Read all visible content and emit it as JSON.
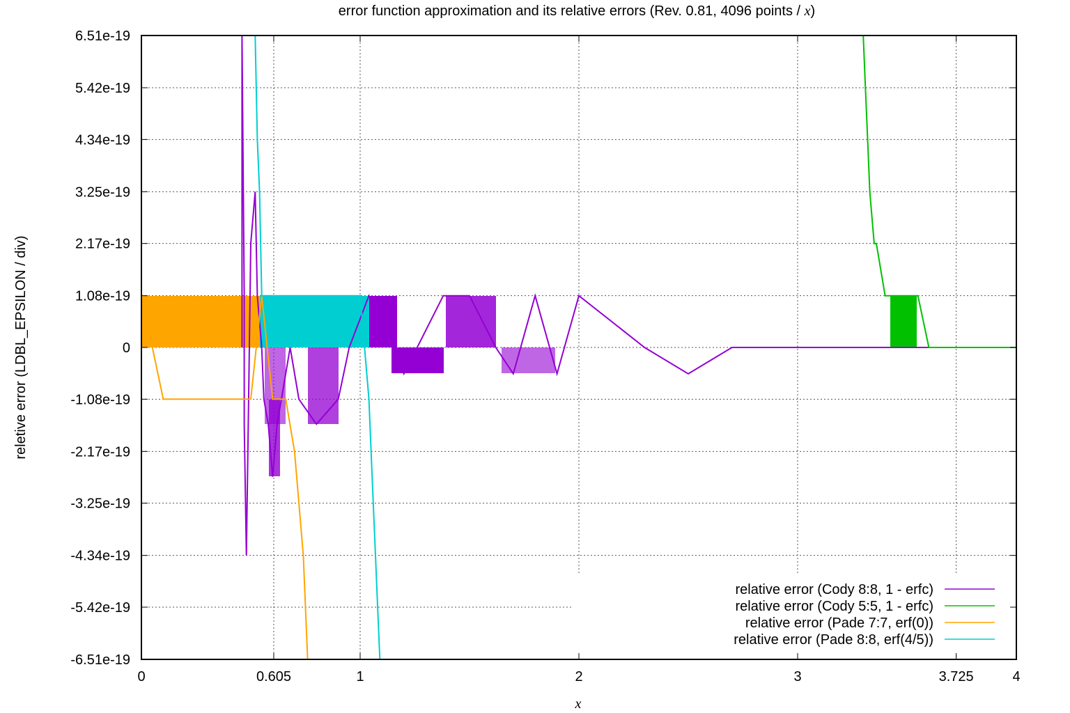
{
  "chart_data": {
    "type": "line",
    "title_main": "error function approximation and its relative errors (Rev. 0.81, 4096 points / ",
    "title_var": "x",
    "title_end": ")",
    "xlabel": "x",
    "ylabel": "reletive error (LDBL_EPSILON / div)",
    "xlim": [
      0,
      4
    ],
    "ylim": [
      -6.51e-19,
      6.51e-19
    ],
    "x_ticks": [
      {
        "value": 0,
        "label": "0"
      },
      {
        "value": 0.605,
        "label": "0.605"
      },
      {
        "value": 1,
        "label": "1"
      },
      {
        "value": 2,
        "label": "2"
      },
      {
        "value": 3,
        "label": "3"
      },
      {
        "value": 3.725,
        "label": "3.725"
      },
      {
        "value": 4,
        "label": "4"
      }
    ],
    "y_ticks": [
      {
        "value": 6.51e-19,
        "label": "6.51e-19"
      },
      {
        "value": 5.42e-19,
        "label": "5.42e-19"
      },
      {
        "value": 4.34e-19,
        "label": "4.34e-19"
      },
      {
        "value": 3.25e-19,
        "label": "3.25e-19"
      },
      {
        "value": 2.17e-19,
        "label": "2.17e-19"
      },
      {
        "value": 1.08e-19,
        "label": "1.08e-19"
      },
      {
        "value": 0,
        "label": "0"
      },
      {
        "value": -1.08e-19,
        "label": "-1.08e-19"
      },
      {
        "value": -2.17e-19,
        "label": "-2.17e-19"
      },
      {
        "value": -3.25e-19,
        "label": "-3.25e-19"
      },
      {
        "value": -4.34e-19,
        "label": "-4.34e-19"
      },
      {
        "value": -5.42e-19,
        "label": "-5.42e-19"
      },
      {
        "value": -6.51e-19,
        "label": "-6.51e-19"
      }
    ],
    "grid": true,
    "legend_position": "bottom-right",
    "series": [
      {
        "name": "relative error (Cody 8:8, 1 - erfc)",
        "color": "#9400d3",
        "points": [
          [
            0.46,
            0
          ],
          [
            0.46,
            6.51e-19
          ],
          [
            0.47,
            1.08e-19
          ],
          [
            0.47,
            -1.6e-19
          ],
          [
            0.48,
            -4.34e-19
          ],
          [
            0.49,
            -1.08e-19
          ],
          [
            0.5,
            2.17e-19
          ],
          [
            0.52,
            3.25e-19
          ],
          [
            0.53,
            1.08e-19
          ],
          [
            0.55,
            0
          ],
          [
            0.56,
            -1.08e-19
          ],
          [
            0.58,
            -1.6e-19
          ],
          [
            0.6,
            -2.7e-19
          ],
          [
            0.62,
            -1.6e-19
          ],
          [
            0.64,
            -1.08e-19
          ],
          [
            0.68,
            0
          ],
          [
            0.72,
            -1.08e-19
          ],
          [
            0.8,
            -1.6e-19
          ],
          [
            0.9,
            -1.08e-19
          ],
          [
            0.95,
            0
          ],
          [
            1.04,
            1.08e-19
          ],
          [
            1.15,
            0
          ],
          [
            1.2,
            -5.5e-20
          ],
          [
            1.38,
            1.08e-19
          ],
          [
            1.5,
            1.08e-19
          ],
          [
            1.62,
            0
          ],
          [
            1.7,
            -5.5e-20
          ],
          [
            1.8,
            1.08e-19
          ],
          [
            1.9,
            -5.5e-20
          ],
          [
            2.0,
            1.08e-19
          ],
          [
            2.3,
            0
          ],
          [
            2.5,
            -5.5e-20
          ],
          [
            2.7,
            0
          ],
          [
            3.0,
            0
          ],
          [
            3.5,
            0
          ],
          [
            4.0,
            0
          ]
        ]
      },
      {
        "name": "relative error (Cody 5:5, 1 - erfc)",
        "color": "#00c000",
        "points": [
          [
            3.3,
            6.51e-19
          ],
          [
            3.31,
            5.42e-19
          ],
          [
            3.32,
            4.34e-19
          ],
          [
            3.33,
            3.25e-19
          ],
          [
            3.35,
            2.17e-19
          ],
          [
            3.36,
            2.17e-19
          ],
          [
            3.4,
            1.08e-19
          ],
          [
            3.5,
            1.08e-19
          ],
          [
            3.55,
            1.08e-19
          ],
          [
            3.6,
            0
          ],
          [
            3.7,
            0
          ],
          [
            4.0,
            0
          ]
        ]
      },
      {
        "name": "relative error (Pade 7:7, erf(0))",
        "color": "#ffa500",
        "points": [
          [
            0,
            1.08e-19
          ],
          [
            0.1,
            -1.08e-19
          ],
          [
            0.3,
            -1.08e-19
          ],
          [
            0.5,
            -1.08e-19
          ],
          [
            0.55,
            1.08e-19
          ],
          [
            0.6,
            -1.08e-19
          ],
          [
            0.66,
            -1.08e-19
          ],
          [
            0.7,
            -2.17e-19
          ],
          [
            0.72,
            -3.25e-19
          ],
          [
            0.74,
            -4.34e-19
          ],
          [
            0.75,
            -5.42e-19
          ],
          [
            0.76,
            -6.51e-19
          ]
        ]
      },
      {
        "name": "relative error (Pade 8:8, erf(4/5))",
        "color": "#00ced1",
        "points": [
          [
            0.52,
            6.51e-19
          ],
          [
            0.53,
            4.34e-19
          ],
          [
            0.54,
            3.25e-19
          ],
          [
            0.55,
            1.08e-19
          ],
          [
            0.6,
            1.08e-19
          ],
          [
            0.8,
            1.08e-19
          ],
          [
            1.0,
            1.08e-19
          ],
          [
            1.04,
            -1.08e-19
          ],
          [
            1.06,
            -3.25e-19
          ],
          [
            1.07,
            -4.34e-19
          ],
          [
            1.08,
            -5.42e-19
          ],
          [
            1.09,
            -6.51e-19
          ]
        ]
      }
    ]
  }
}
